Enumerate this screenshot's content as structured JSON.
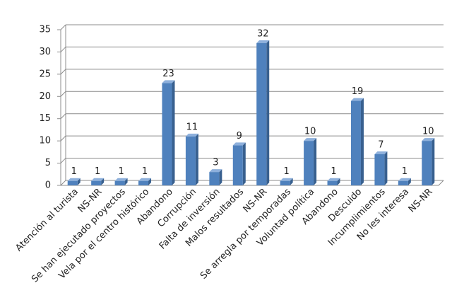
{
  "chart_data": {
    "type": "bar",
    "categories": [
      "Atención al turista",
      "NS-NR",
      "Se han ejecutado proyectos",
      "Vela por el centro histórico",
      "Abandono",
      "Corrupción",
      "Falta de inversión",
      "Malos resultados",
      "NS-NR",
      "Se arregla por temporadas",
      "Voluntad política",
      "Abandono",
      "Descuido",
      "Incumplimientos",
      "No les interesa",
      "NS-NR"
    ],
    "values": [
      1,
      1,
      1,
      1,
      23,
      11,
      3,
      9,
      32,
      1,
      10,
      1,
      19,
      7,
      1,
      10
    ],
    "color": "#4f81bd",
    "ylim": [
      0,
      35
    ],
    "yticks": [
      0,
      5,
      10,
      15,
      20,
      25,
      30,
      35
    ],
    "grid": true
  }
}
